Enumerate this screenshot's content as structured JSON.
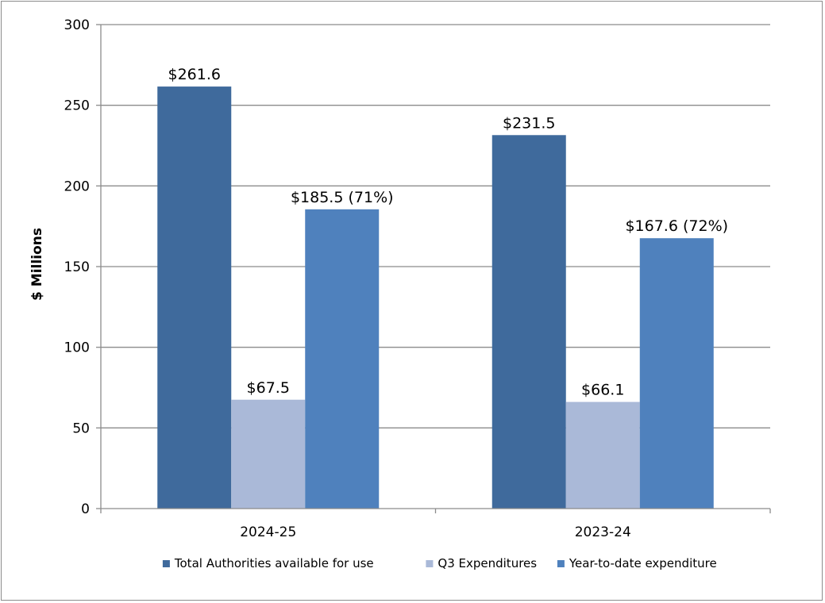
{
  "chart_data": {
    "type": "bar",
    "categories": [
      "2024-25",
      "2023-24"
    ],
    "series": [
      {
        "name": "Total Authorities available for use",
        "values": [
          261.6,
          231.5
        ],
        "labels": [
          "$261.6",
          "$231.5"
        ],
        "color": "#3f6a9c"
      },
      {
        "name": "Q3 Expenditures",
        "values": [
          67.5,
          66.1
        ],
        "labels": [
          "$67.5",
          "$66.1"
        ],
        "color": "#aab9d8"
      },
      {
        "name": "Year-to-date expenditure",
        "values": [
          185.5,
          167.6
        ],
        "labels": [
          "$185.5 (71%)",
          "$167.6 (72%)"
        ],
        "color": "#4f81bd"
      }
    ],
    "ylabel": "$ Millions",
    "ylim": [
      0,
      300
    ],
    "yticks": [
      0,
      50,
      100,
      150,
      200,
      250,
      300
    ],
    "grid": true,
    "legend_position": "bottom"
  }
}
